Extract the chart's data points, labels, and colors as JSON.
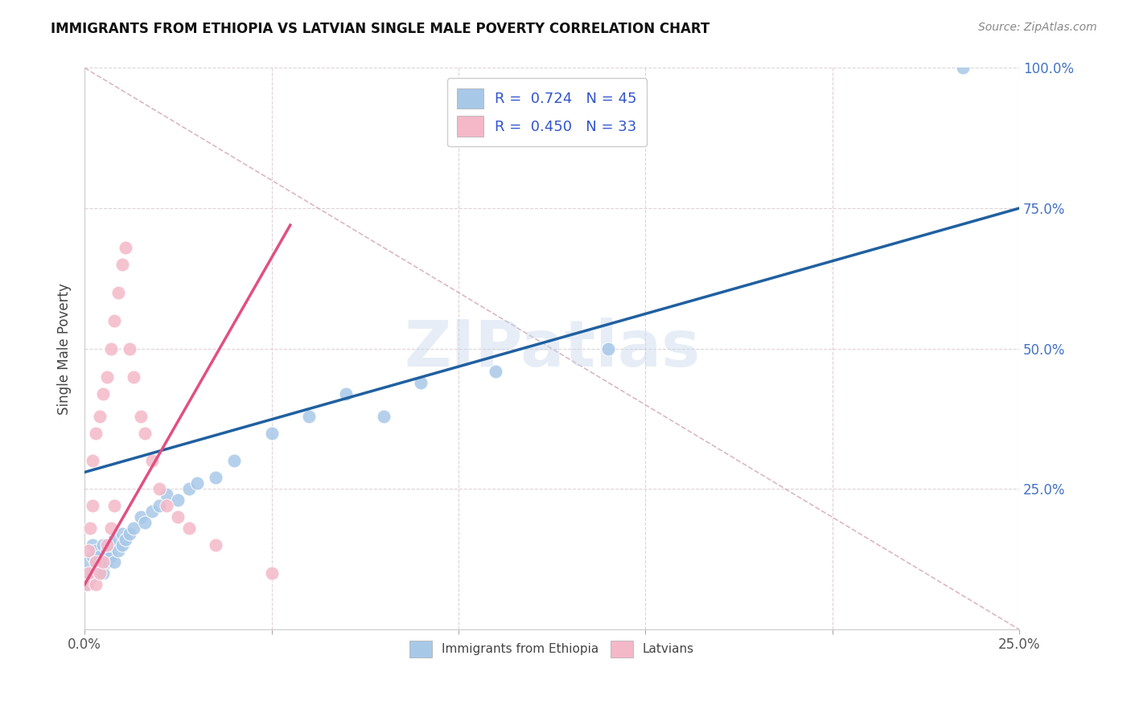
{
  "title": "IMMIGRANTS FROM ETHIOPIA VS LATVIAN SINGLE MALE POVERTY CORRELATION CHART",
  "source": "Source: ZipAtlas.com",
  "ylabel": "Single Male Poverty",
  "xlim": [
    0.0,
    0.25
  ],
  "ylim": [
    0.0,
    1.0
  ],
  "xticks": [
    0.0,
    0.05,
    0.1,
    0.15,
    0.2,
    0.25
  ],
  "yticks": [
    0.0,
    0.25,
    0.5,
    0.75,
    1.0
  ],
  "xticklabels": [
    "0.0%",
    "",
    "",
    "",
    "",
    "25.0%"
  ],
  "yticklabels_right": [
    "",
    "25.0%",
    "50.0%",
    "75.0%",
    "100.0%"
  ],
  "legend_r1": "R =  0.724",
  "legend_n1": "N = 45",
  "legend_r2": "R =  0.450",
  "legend_n2": "N = 33",
  "blue_color": "#a8c8e8",
  "pink_color": "#f4b8c8",
  "blue_line_color": "#2060a0",
  "pink_line_color": "#e05080",
  "ref_line_color": "#d8b0b8",
  "watermark": "ZIPatlas",
  "blue_scatter_x": [
    0.0005,
    0.001,
    0.001,
    0.0015,
    0.002,
    0.002,
    0.002,
    0.003,
    0.003,
    0.003,
    0.004,
    0.004,
    0.005,
    0.005,
    0.005,
    0.006,
    0.006,
    0.007,
    0.007,
    0.008,
    0.008,
    0.009,
    0.01,
    0.01,
    0.011,
    0.012,
    0.013,
    0.015,
    0.016,
    0.018,
    0.02,
    0.022,
    0.025,
    0.028,
    0.03,
    0.035,
    0.04,
    0.05,
    0.06,
    0.07,
    0.08,
    0.09,
    0.11,
    0.14,
    0.235
  ],
  "blue_scatter_y": [
    0.08,
    0.1,
    0.12,
    0.09,
    0.1,
    0.13,
    0.15,
    0.1,
    0.12,
    0.14,
    0.11,
    0.13,
    0.1,
    0.12,
    0.15,
    0.12,
    0.14,
    0.13,
    0.15,
    0.12,
    0.16,
    0.14,
    0.15,
    0.17,
    0.16,
    0.17,
    0.18,
    0.2,
    0.19,
    0.21,
    0.22,
    0.24,
    0.23,
    0.25,
    0.26,
    0.27,
    0.3,
    0.35,
    0.38,
    0.42,
    0.38,
    0.44,
    0.46,
    0.5,
    1.0
  ],
  "pink_scatter_x": [
    0.0005,
    0.001,
    0.001,
    0.0015,
    0.002,
    0.002,
    0.003,
    0.003,
    0.003,
    0.004,
    0.004,
    0.005,
    0.005,
    0.006,
    0.006,
    0.007,
    0.007,
    0.008,
    0.008,
    0.009,
    0.01,
    0.011,
    0.012,
    0.013,
    0.015,
    0.016,
    0.018,
    0.02,
    0.022,
    0.025,
    0.028,
    0.035,
    0.05
  ],
  "pink_scatter_y": [
    0.08,
    0.1,
    0.14,
    0.18,
    0.22,
    0.3,
    0.08,
    0.12,
    0.35,
    0.1,
    0.38,
    0.12,
    0.42,
    0.15,
    0.45,
    0.18,
    0.5,
    0.55,
    0.22,
    0.6,
    0.65,
    0.68,
    0.5,
    0.45,
    0.38,
    0.35,
    0.3,
    0.25,
    0.22,
    0.2,
    0.18,
    0.15,
    0.1
  ],
  "blue_line_x": [
    0.0,
    0.25
  ],
  "blue_line_y": [
    0.28,
    0.75
  ],
  "pink_line_x": [
    0.0,
    0.055
  ],
  "pink_line_y": [
    0.08,
    0.72
  ],
  "ref_line_x": [
    0.0,
    0.25
  ],
  "ref_line_y": [
    1.0,
    0.0
  ]
}
